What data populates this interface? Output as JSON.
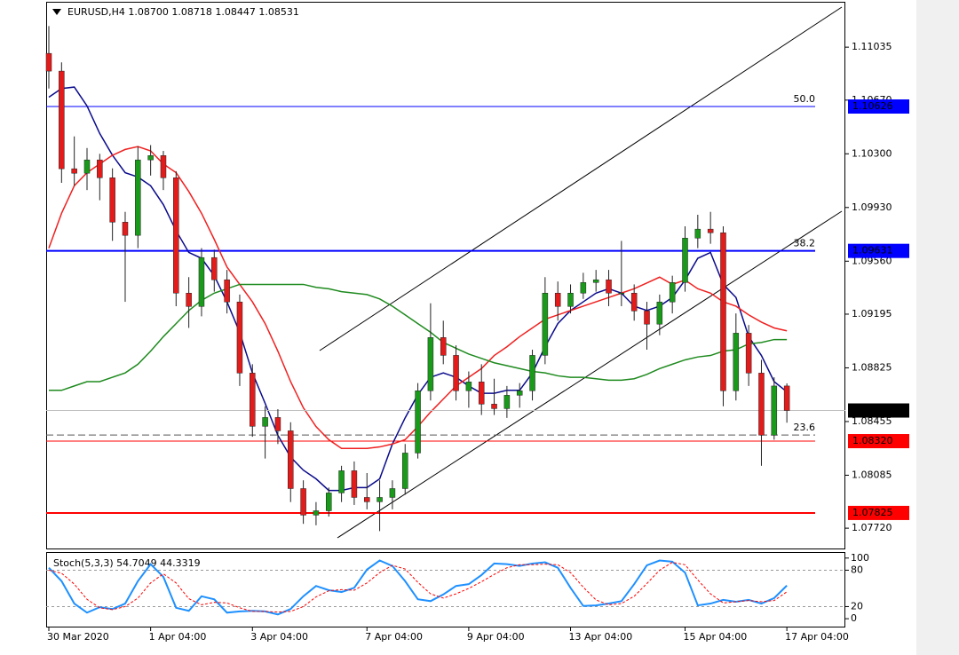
{
  "chart_data": {
    "type": "candlestick",
    "title": "EURUSD,H4",
    "title_values": [
      "1.08700",
      "1.08718",
      "1.08447",
      "1.08531"
    ],
    "categories": [
      "30 Mar 2020",
      null,
      null,
      null,
      null,
      null,
      null,
      null,
      "1 Apr 04:00",
      null,
      null,
      null,
      null,
      null,
      null,
      null,
      "3 Apr 04:00",
      null,
      null,
      null,
      null,
      null,
      null,
      null,
      null,
      "7 Apr 04:00",
      null,
      null,
      null,
      null,
      null,
      null,
      null,
      "9 Apr 04:00",
      null,
      null,
      null,
      null,
      null,
      null,
      null,
      "13 Apr 04:00",
      null,
      null,
      null,
      null,
      null,
      null,
      null,
      null,
      "15 Apr 04:00",
      null,
      null,
      null,
      null,
      null,
      null,
      null,
      "17 Apr 04:00"
    ],
    "open": [
      1.10992,
      1.1087,
      1.10197,
      1.10166,
      1.10258,
      1.10135,
      1.09829,
      1.09738,
      1.10258,
      1.10288,
      1.10135,
      1.0934,
      1.09248,
      1.09585,
      1.09432,
      1.09279,
      1.08789,
      1.08422,
      1.08483,
      1.08391,
      1.07993,
      1.0781,
      1.0784,
      1.07963,
      1.08116,
      1.07932,
      1.07902,
      1.07932,
      1.07993,
      1.08238,
      1.08667,
      1.09034,
      1.08911,
      1.08667,
      1.08728,
      1.08575,
      1.08544,
      1.08636,
      1.08667,
      1.08911,
      1.0934,
      1.09248,
      1.0934,
      1.09413,
      1.09432,
      1.0934,
      1.0934,
      1.09217,
      1.09126,
      1.09279,
      1.09413,
      1.09719,
      1.09781,
      1.09756,
      1.08667,
      1.09064,
      1.08789,
      1.08361,
      1.087
    ],
    "high": [
      1.1118,
      1.1093,
      1.1042,
      1.1034,
      1.103,
      1.102,
      1.099,
      1.1035,
      1.1036,
      1.1032,
      1.1018,
      1.0945,
      1.0965,
      1.0964,
      1.095,
      1.0933,
      1.0885,
      1.0856,
      1.0854,
      1.0845,
      1.0805,
      1.079,
      1.08,
      1.0815,
      1.0818,
      1.081,
      1.0805,
      1.0805,
      1.083,
      1.0872,
      1.0927,
      1.0915,
      1.0898,
      1.088,
      1.0885,
      1.0875,
      1.087,
      1.0872,
      1.0895,
      1.0945,
      1.0942,
      1.094,
      1.0948,
      1.095,
      1.095,
      1.097,
      1.094,
      1.0928,
      1.0933,
      1.0946,
      1.098,
      1.0988,
      1.099,
      1.098,
      1.092,
      1.0912,
      1.0888,
      1.0876,
      1.08718
    ],
    "low": [
      1.1075,
      1.101,
      1.1008,
      1.1005,
      1.0998,
      1.097,
      1.0928,
      1.0965,
      1.1015,
      1.1005,
      1.0925,
      1.091,
      1.0918,
      1.0935,
      1.092,
      1.087,
      1.0835,
      1.082,
      1.083,
      1.079,
      1.0775,
      1.0774,
      1.078,
      1.079,
      1.0788,
      1.0785,
      1.077,
      1.0785,
      1.0795,
      1.082,
      1.086,
      1.0885,
      1.086,
      1.0855,
      1.085,
      1.085,
      1.0848,
      1.0855,
      1.086,
      1.0885,
      1.0915,
      1.092,
      1.093,
      1.0935,
      1.0925,
      1.0925,
      1.0915,
      1.0895,
      1.0905,
      1.092,
      1.0935,
      1.0965,
      1.0968,
      1.0856,
      1.086,
      1.087,
      1.0815,
      1.0833,
      1.08447
    ],
    "close": [
      1.1087,
      1.10197,
      1.10166,
      1.10258,
      1.10135,
      1.09829,
      1.09738,
      1.10258,
      1.10288,
      1.10135,
      1.0934,
      1.09248,
      1.09585,
      1.09432,
      1.09279,
      1.08789,
      1.08422,
      1.08483,
      1.08391,
      1.07993,
      1.0781,
      1.0784,
      1.07963,
      1.08116,
      1.07932,
      1.07902,
      1.07932,
      1.07993,
      1.08238,
      1.08667,
      1.09034,
      1.08911,
      1.08667,
      1.08728,
      1.08575,
      1.08544,
      1.08636,
      1.08667,
      1.08911,
      1.0934,
      1.09248,
      1.0934,
      1.09413,
      1.09432,
      1.0934,
      1.0934,
      1.09217,
      1.09126,
      1.09279,
      1.09413,
      1.09719,
      1.09781,
      1.09756,
      1.08667,
      1.09064,
      1.08789,
      1.08361,
      1.087,
      1.08531
    ],
    "up_color": "#1a9a1a",
    "down_color": "#e21b1b",
    "ylim": [
      1.0758,
      1.1136
    ],
    "yticks": [
      {
        "value": 1.11035,
        "label": "1.11035"
      },
      {
        "value": 1.1067,
        "label": "1.10670"
      },
      {
        "value": 1.103,
        "label": "1.10300"
      },
      {
        "value": 1.0993,
        "label": "1.09930"
      },
      {
        "value": 1.0956,
        "label": "1.09560"
      },
      {
        "value": 1.09195,
        "label": "1.09195"
      },
      {
        "value": 1.08825,
        "label": "1.08825"
      },
      {
        "value": 1.08455,
        "label": "1.08455"
      },
      {
        "value": 1.08085,
        "label": "1.08085"
      },
      {
        "value": 1.0772,
        "label": "1.07720"
      }
    ],
    "lines": [
      {
        "color": "#0a0a8c",
        "values": [
          1.1069,
          1.1075,
          1.1076,
          1.1063,
          1.1044,
          1.1029,
          1.1017,
          1.1014,
          1.1008,
          1.0995,
          1.0977,
          1.0962,
          1.0958,
          1.0946,
          1.0928,
          1.0907,
          1.0879,
          1.0858,
          1.0836,
          1.0821,
          1.0812,
          1.0806,
          1.0798,
          1.0798,
          1.08,
          1.08,
          1.0806,
          1.083,
          1.0848,
          1.0864,
          1.0876,
          1.0879,
          1.0876,
          1.087,
          1.0865,
          1.0865,
          1.0867,
          1.0867,
          1.0879,
          1.0897,
          1.0913,
          1.0922,
          1.0928,
          1.0934,
          1.0937,
          1.0934,
          1.0925,
          1.0922,
          1.0925,
          1.0931,
          1.0943,
          1.0958,
          1.0962,
          1.094,
          1.0931,
          1.0904,
          1.0891,
          1.0873,
          1.0866
        ]
      },
      {
        "color": "#f02020",
        "values": [
          1.0965,
          1.0989,
          1.1008,
          1.1017,
          1.1023,
          1.1029,
          1.1033,
          1.1035,
          1.1032,
          1.1023,
          1.1017,
          1.1004,
          1.0989,
          1.0971,
          1.0952,
          1.094,
          1.0928,
          1.0913,
          1.0894,
          1.0873,
          1.0855,
          1.0842,
          1.0833,
          1.0827,
          1.0827,
          1.0827,
          1.0828,
          1.083,
          1.0833,
          1.0842,
          1.0852,
          1.0861,
          1.087,
          1.0876,
          1.0882,
          1.0891,
          1.0897,
          1.0904,
          1.091,
          1.0916,
          1.0919,
          1.0922,
          1.0925,
          1.0928,
          1.0931,
          1.0934,
          1.0937,
          1.0941,
          1.0945,
          1.094,
          1.0943,
          1.0937,
          1.0934,
          1.0928,
          1.0925,
          1.0919,
          1.0914,
          1.091,
          1.0908
        ]
      },
      {
        "color": "#1e8a1e",
        "values": [
          1.0867,
          1.0867,
          1.087,
          1.0873,
          1.0873,
          1.0876,
          1.0879,
          1.0885,
          1.0894,
          1.0904,
          1.0913,
          1.0922,
          1.0929,
          1.0934,
          1.0937,
          1.094,
          1.094,
          1.094,
          1.094,
          1.094,
          1.094,
          1.0938,
          1.0937,
          1.0935,
          1.0934,
          1.0933,
          1.093,
          1.0925,
          1.0919,
          1.0913,
          1.0907,
          1.09,
          1.0896,
          1.0892,
          1.0889,
          1.0886,
          1.0884,
          1.0882,
          1.088,
          1.0879,
          1.0877,
          1.0876,
          1.0876,
          1.0875,
          1.0874,
          1.0874,
          1.0875,
          1.0878,
          1.0882,
          1.0885,
          1.0888,
          1.089,
          1.0891,
          1.0894,
          1.0895,
          1.0899,
          1.09,
          1.0902,
          1.0902
        ]
      }
    ],
    "hlines": [
      {
        "value": 1.10626,
        "label": "1.10626",
        "color": "#0000ff",
        "width": 1
      },
      {
        "value": 1.09631,
        "label": "1.09631",
        "color": "#0000ff",
        "width": 2
      },
      {
        "value": 1.0832,
        "label": "1.08320",
        "color": "#ff0000",
        "width": 1
      },
      {
        "value": 1.07825,
        "label": "1.07825",
        "color": "#ff0000",
        "width": 2
      }
    ],
    "fib_levels": [
      {
        "label": "50.0",
        "value": 1.10626
      },
      {
        "label": "38.2",
        "value": 1.09631
      },
      {
        "label": "23.6",
        "value": 1.08362
      }
    ],
    "indicator": {
      "type": "line",
      "title": "Stoch(5,3,3)",
      "ylim": [
        -13,
        107
      ],
      "yticks": [
        100,
        80,
        20,
        0
      ],
      "levels": [
        80,
        20
      ],
      "series": [
        {
          "color": "#1e90ff",
          "values": [
            84,
            62,
            25,
            10,
            19,
            16,
            25,
            62,
            90,
            69,
            18,
            13,
            37,
            32,
            10,
            12,
            13,
            12,
            7,
            16,
            37,
            54,
            47,
            44,
            51,
            81,
            96,
            87,
            62,
            32,
            29,
            40,
            54,
            57,
            72,
            91,
            90,
            87,
            91,
            93,
            84,
            51,
            21,
            22,
            25,
            29,
            57,
            88,
            96,
            94,
            76,
            22,
            25,
            31,
            28,
            31,
            25,
            34,
            54.7049
          ]
        },
        {
          "color": "#ff0000",
          "dashed": true,
          "values": [
            80,
            75,
            57,
            32,
            18,
            15,
            20,
            34,
            59,
            74,
            59,
            33,
            23,
            27,
            26,
            18,
            12,
            12,
            11,
            12,
            20,
            36,
            46,
            48,
            47,
            59,
            76,
            88,
            82,
            60,
            41,
            34,
            41,
            50,
            61,
            73,
            84,
            89,
            89,
            90,
            89,
            76,
            52,
            31,
            23,
            25,
            37,
            58,
            80,
            93,
            89,
            64,
            41,
            26,
            28,
            30,
            28,
            30,
            44.3319
          ]
        }
      ]
    }
  }
}
